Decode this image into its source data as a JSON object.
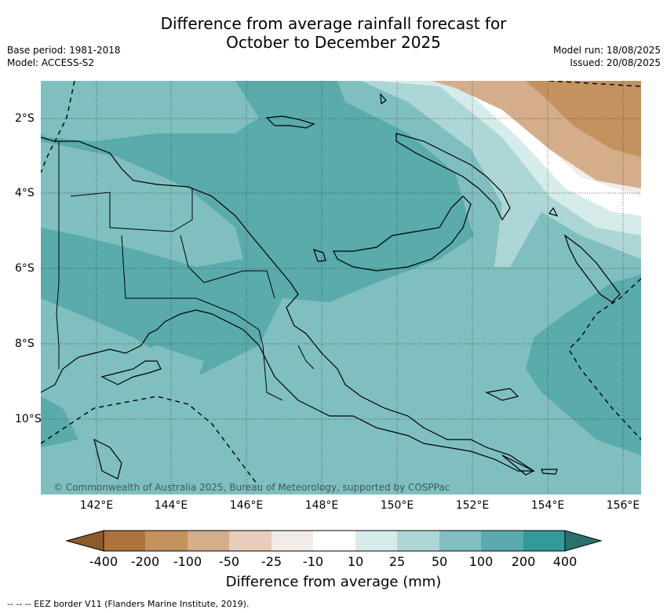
{
  "title_line1": "Difference from average rainfall forecast for",
  "title_line2": "October to December 2025",
  "meta": {
    "base_period": "Base period: 1981-2018",
    "model": "Model: ACCESS-S2",
    "model_run": "Model run: 18/08/2025",
    "issued": "Issued: 20/08/2025"
  },
  "axes": {
    "lon_labels": [
      "142°E",
      "144°E",
      "146°E",
      "148°E",
      "150°E",
      "152°E",
      "154°E",
      "156°E"
    ],
    "lat_labels": [
      "2°S",
      "4°S",
      "6°S",
      "8°S",
      "10°S"
    ]
  },
  "copyright": "© Commonwealth of Australia 2025, Bureau of Meteorology, supported by COSPPac",
  "colorbar": {
    "title": "Difference from average (mm)",
    "ticks": [
      "-400",
      "-200",
      "-100",
      "-50",
      "-25",
      "-10",
      "10",
      "25",
      "50",
      "100",
      "200",
      "400"
    ],
    "colors": [
      "#8c5a2b",
      "#ad733a",
      "#c3925f",
      "#d4ae8a",
      "#e6cebb",
      "#f2ece8",
      "#ffffff",
      "#d5ecea",
      "#add7d6",
      "#80bfbf",
      "#5aabab",
      "#329a98",
      "#2a716c"
    ]
  },
  "footnote": "--  --  -- EEZ border V11 (Flanders Marine Institute, 2019)."
}
